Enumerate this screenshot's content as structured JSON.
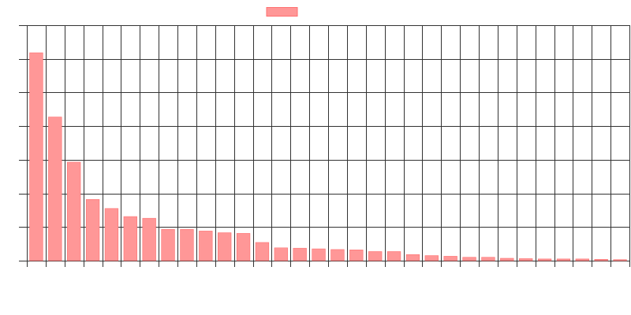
{
  "chart_data": {
    "type": "bar",
    "title": "",
    "xlabel": "",
    "ylabel": "",
    "ylim": [
      0,
      7
    ],
    "y_ticks": [
      0,
      1,
      2,
      3,
      4,
      5,
      6,
      7
    ],
    "grid": true,
    "legend": {
      "position": "top-center",
      "entries": [
        {
          "label": "",
          "color": "#ff9797"
        }
      ]
    },
    "series": [
      {
        "color": "#ff9797",
        "values": [
          6.18,
          4.27,
          2.93,
          1.82,
          1.55,
          1.31,
          1.26,
          0.93,
          0.93,
          0.88,
          0.83,
          0.81,
          0.54,
          0.38,
          0.37,
          0.35,
          0.33,
          0.32,
          0.27,
          0.27,
          0.18,
          0.15,
          0.13,
          0.1,
          0.1,
          0.07,
          0.06,
          0.05,
          0.05,
          0.05,
          0.04,
          0.03
        ]
      }
    ]
  }
}
